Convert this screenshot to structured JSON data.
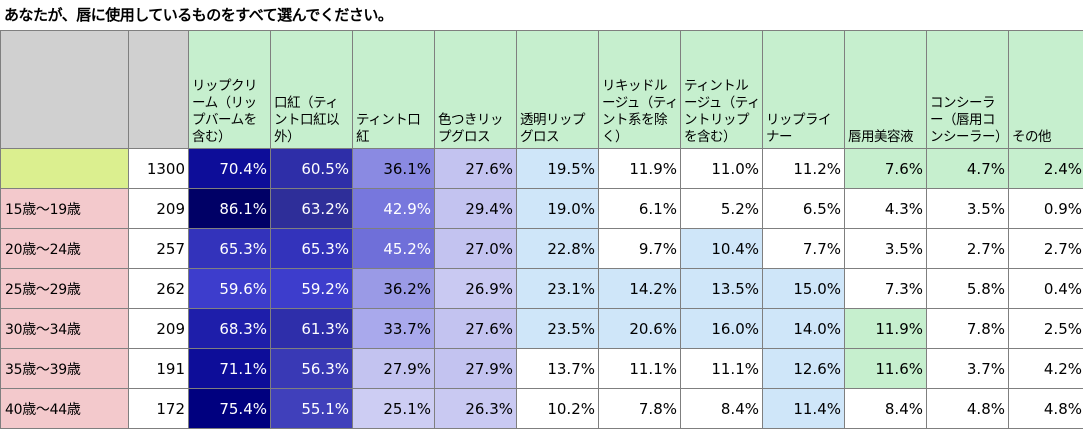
{
  "title": "あなたが、唇に使用しているものをすべて選んでください。",
  "columns": [
    "",
    "",
    "リップクリーム（リップバームを含む）",
    "口紅（ティント口紅以外）",
    "ティント口紅",
    "色つきリップグロス",
    "透明リップグロス",
    "リキッドルージュ（ティント系を除く）",
    "ティントルージュ（ティントリップを含む）",
    "リップライナー",
    "唇用美容液",
    "コンシーラー（唇用コンシーラー）",
    "その他"
  ],
  "rows": [
    {
      "label": "",
      "n": "1300",
      "values": [
        "70.4%",
        "60.5%",
        "36.1%",
        "27.6%",
        "19.5%",
        "11.9%",
        "11.0%",
        "11.2%",
        "7.6%",
        "4.7%",
        "2.4%"
      ]
    },
    {
      "label": "15歳～19歳",
      "n": "209",
      "values": [
        "86.1%",
        "63.2%",
        "42.9%",
        "29.4%",
        "19.0%",
        "6.1%",
        "5.2%",
        "6.5%",
        "4.3%",
        "3.5%",
        "0.9%"
      ]
    },
    {
      "label": "20歳～24歳",
      "n": "257",
      "values": [
        "65.3%",
        "65.3%",
        "45.2%",
        "27.0%",
        "22.8%",
        "9.7%",
        "10.4%",
        "7.7%",
        "3.5%",
        "2.7%",
        "2.7%"
      ]
    },
    {
      "label": "25歳～29歳",
      "n": "262",
      "values": [
        "59.6%",
        "59.2%",
        "36.2%",
        "26.9%",
        "23.1%",
        "14.2%",
        "13.5%",
        "15.0%",
        "7.3%",
        "5.8%",
        "0.4%"
      ]
    },
    {
      "label": "30歳～34歳",
      "n": "209",
      "values": [
        "68.3%",
        "61.3%",
        "33.7%",
        "27.6%",
        "23.5%",
        "20.6%",
        "16.0%",
        "14.0%",
        "11.9%",
        "7.8%",
        "2.5%"
      ]
    },
    {
      "label": "35歳～39歳",
      "n": "191",
      "values": [
        "71.1%",
        "56.3%",
        "27.9%",
        "27.9%",
        "13.7%",
        "11.1%",
        "11.1%",
        "12.6%",
        "11.6%",
        "3.7%",
        "4.2%"
      ]
    },
    {
      "label": "40歳～44歳",
      "n": "172",
      "values": [
        "75.4%",
        "55.1%",
        "25.1%",
        "26.3%",
        "10.2%",
        "7.8%",
        "8.4%",
        "11.4%",
        "8.4%",
        "4.8%",
        "4.8%"
      ]
    }
  ],
  "cell_colors": [
    [
      "#0d0d99",
      "#2e2ea8",
      "#8a8ae2",
      "#c3c3f0",
      "#cfe6f9",
      "#ffffff",
      "#ffffff",
      "#ffffff",
      "#c6efce",
      "#c6efce",
      "#c6efce"
    ],
    [
      "#000066",
      "#2e2e99",
      "#7777dd",
      "#c3c3f0",
      "#cfe6f9",
      "#ffffff",
      "#ffffff",
      "#ffffff",
      "#ffffff",
      "#ffffff",
      "#ffffff"
    ],
    [
      "#3333bb",
      "#3333bb",
      "#6f6fd9",
      "#c3c3f0",
      "#cfe6f9",
      "#ffffff",
      "#cfe6f9",
      "#ffffff",
      "#ffffff",
      "#ffffff",
      "#ffffff"
    ],
    [
      "#3d3dcc",
      "#3d3dcc",
      "#9a9ae6",
      "#c9c9f2",
      "#cfe6f9",
      "#cfe6f9",
      "#cfe6f9",
      "#cfe6f9",
      "#ffffff",
      "#ffffff",
      "#ffffff"
    ],
    [
      "#1e1eaa",
      "#2e2eaa",
      "#a9a9ec",
      "#c3c3f0",
      "#cfe6f9",
      "#cfe6f9",
      "#cfe6f9",
      "#cfe6f9",
      "#c6efce",
      "#ffffff",
      "#ffffff"
    ],
    [
      "#0d0d99",
      "#3939b5",
      "#c3c3f0",
      "#c3c3f0",
      "#ffffff",
      "#ffffff",
      "#ffffff",
      "#cfe6f9",
      "#c6efce",
      "#ffffff",
      "#ffffff"
    ],
    [
      "#00007f",
      "#4040bb",
      "#cdcdf3",
      "#c9c9f2",
      "#ffffff",
      "#ffffff",
      "#ffffff",
      "#cfe6f9",
      "#ffffff",
      "#ffffff",
      "#ffffff"
    ]
  ],
  "text_colors": [
    [
      "#ffffff",
      "#ffffff",
      "#000000",
      "#000000",
      "#000000",
      "#000000",
      "#000000",
      "#000000",
      "#000000",
      "#000000",
      "#000000"
    ],
    [
      "#ffffff",
      "#ffffff",
      "#ffffff",
      "#000000",
      "#000000",
      "#000000",
      "#000000",
      "#000000",
      "#000000",
      "#000000",
      "#000000"
    ],
    [
      "#ffffff",
      "#ffffff",
      "#ffffff",
      "#000000",
      "#000000",
      "#000000",
      "#000000",
      "#000000",
      "#000000",
      "#000000",
      "#000000"
    ],
    [
      "#ffffff",
      "#ffffff",
      "#000000",
      "#000000",
      "#000000",
      "#000000",
      "#000000",
      "#000000",
      "#000000",
      "#000000",
      "#000000"
    ],
    [
      "#ffffff",
      "#ffffff",
      "#000000",
      "#000000",
      "#000000",
      "#000000",
      "#000000",
      "#000000",
      "#000000",
      "#000000",
      "#000000"
    ],
    [
      "#ffffff",
      "#ffffff",
      "#000000",
      "#000000",
      "#000000",
      "#000000",
      "#000000",
      "#000000",
      "#000000",
      "#000000",
      "#000000"
    ],
    [
      "#ffffff",
      "#ffffff",
      "#000000",
      "#000000",
      "#000000",
      "#000000",
      "#000000",
      "#000000",
      "#000000",
      "#000000",
      "#000000"
    ]
  ]
}
